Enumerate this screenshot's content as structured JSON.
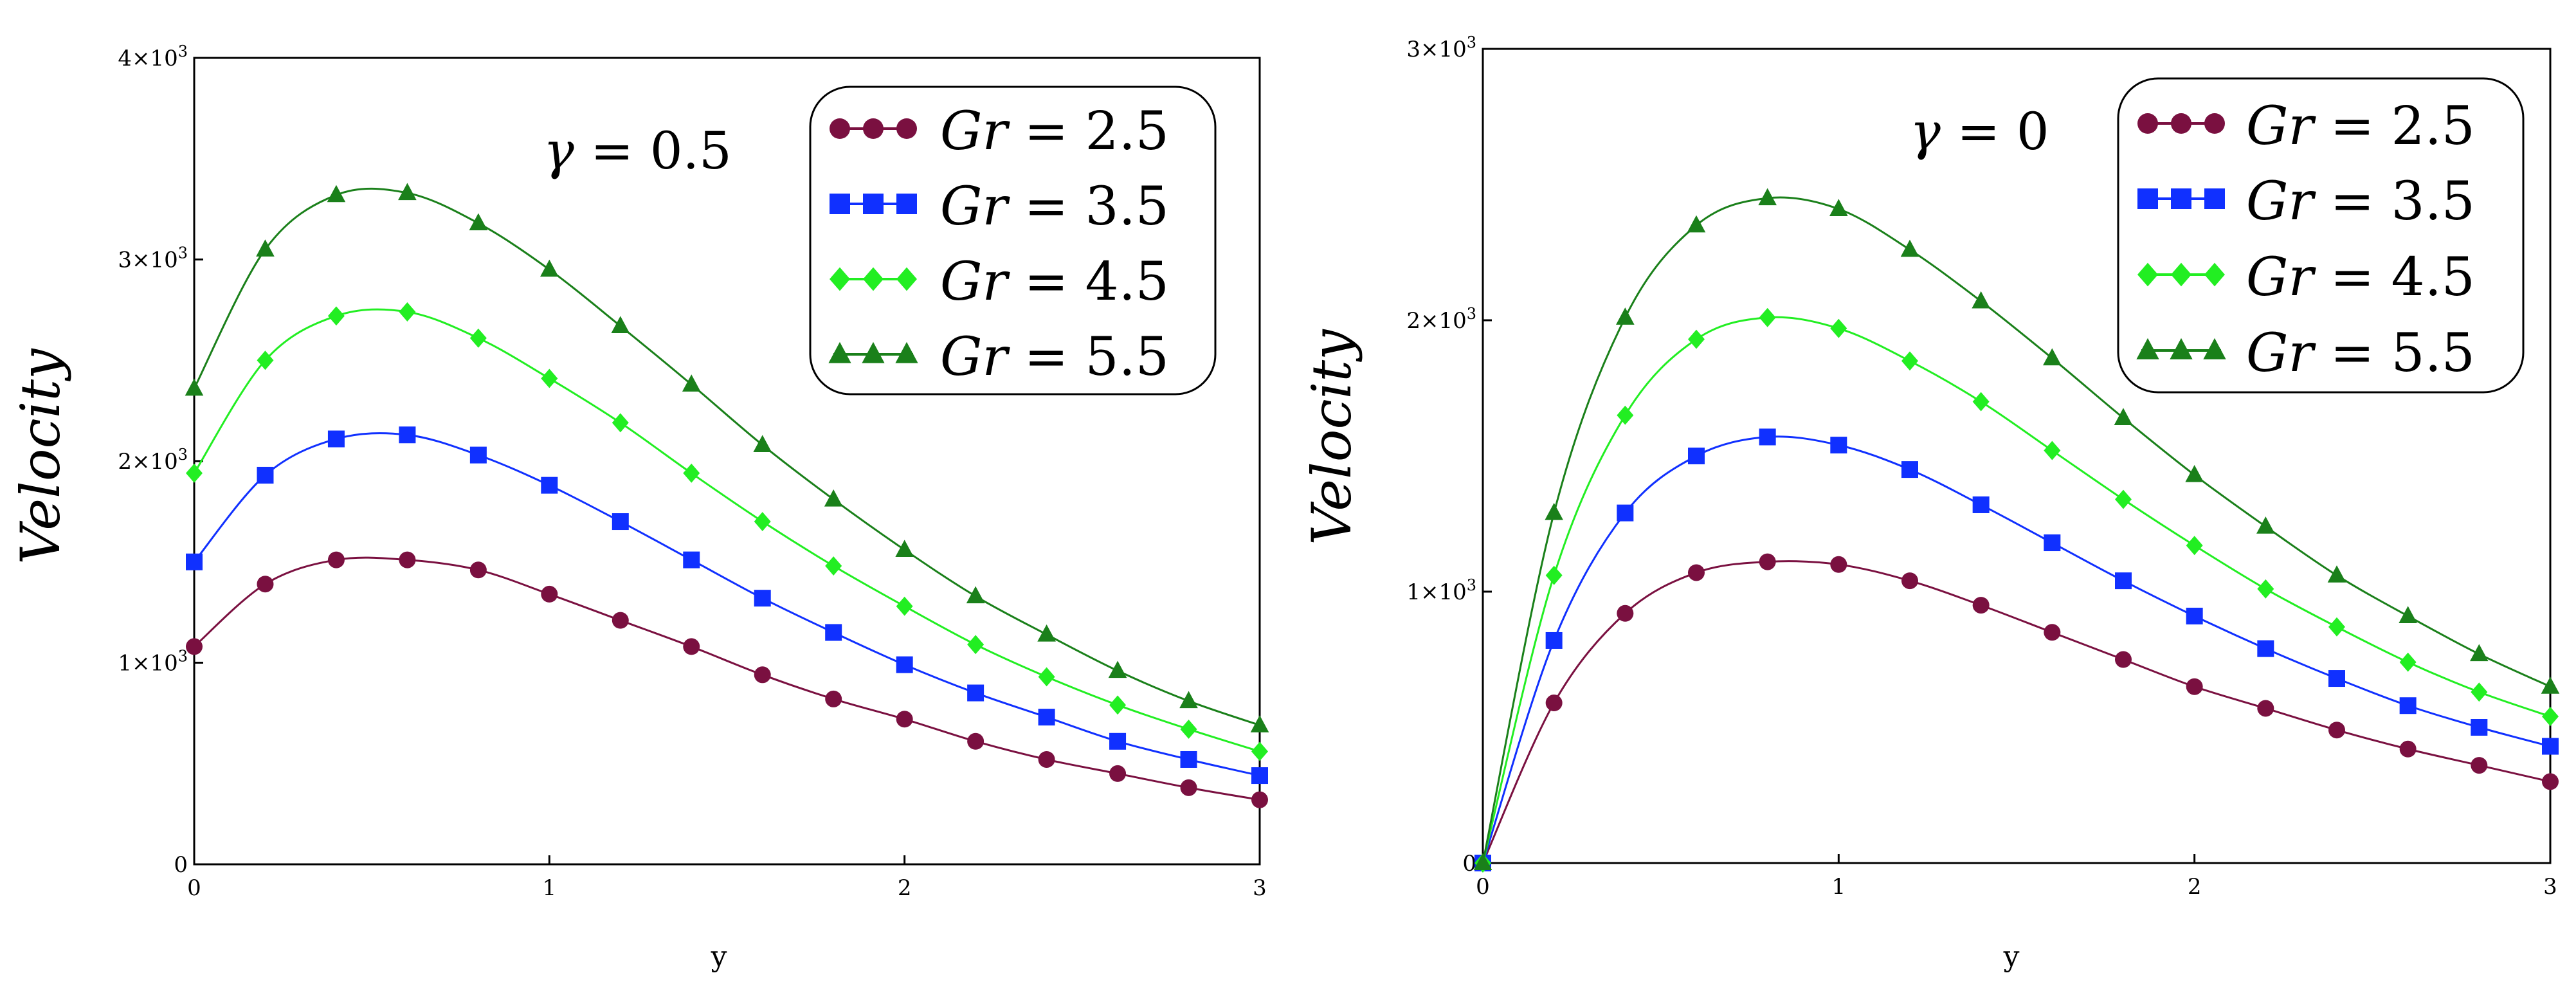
{
  "chart_data": [
    {
      "type": "line",
      "annotation": {
        "symbol": "γ",
        "text": " = 0.5"
      },
      "xlabel": "y",
      "ylabel": "Velocity",
      "xlim": [
        0,
        3
      ],
      "ylim": [
        0,
        4000
      ],
      "x_ticks": [
        "0",
        "1",
        "2",
        "3"
      ],
      "y_ticks": [
        {
          "value": 0,
          "label": "0"
        },
        {
          "value": 1000,
          "mant": "1×10",
          "exp": "3"
        },
        {
          "value": 2000,
          "mant": "2×10",
          "exp": "3"
        },
        {
          "value": 3000,
          "mant": "3×10",
          "exp": "3"
        },
        {
          "value": 4000,
          "mant": "4×10",
          "exp": "3"
        }
      ],
      "legend_position": "top-right",
      "x": [
        0,
        0.2,
        0.4,
        0.6,
        0.8,
        1.0,
        1.2,
        1.4,
        1.6,
        1.8,
        2.0,
        2.2,
        2.4,
        2.6,
        2.8,
        3.0
      ],
      "series": [
        {
          "name": "Gr = 2.5",
          "name_var": "Gr",
          "name_rest": " = 2.5",
          "color": "#7a1040",
          "marker": "circle",
          "values": [
            1080,
            1390,
            1510,
            1510,
            1460,
            1340,
            1210,
            1080,
            940,
            820,
            720,
            610,
            520,
            450,
            380,
            320
          ]
        },
        {
          "name": "Gr = 3.5",
          "name_var": "Gr",
          "name_rest": " = 3.5",
          "color": "#1030ff",
          "marker": "square",
          "values": [
            1500,
            1930,
            2110,
            2130,
            2030,
            1880,
            1700,
            1510,
            1320,
            1150,
            990,
            850,
            730,
            610,
            520,
            440
          ]
        },
        {
          "name": "Gr = 4.5",
          "name_var": "Gr",
          "name_rest": " = 4.5",
          "color": "#22ee22",
          "marker": "diamond",
          "values": [
            1940,
            2500,
            2720,
            2740,
            2610,
            2410,
            2190,
            1940,
            1700,
            1480,
            1280,
            1090,
            930,
            790,
            670,
            560
          ]
        },
        {
          "name": "Gr = 5.5",
          "name_var": "Gr",
          "name_rest": " = 5.5",
          "color": "#1a801a",
          "marker": "triangle",
          "values": [
            2360,
            3050,
            3320,
            3330,
            3180,
            2950,
            2670,
            2380,
            2080,
            1810,
            1560,
            1330,
            1140,
            960,
            810,
            690
          ]
        }
      ]
    },
    {
      "type": "line",
      "annotation": {
        "symbol": "γ",
        "text": " = 0"
      },
      "xlabel": "y",
      "ylabel": "Velocity",
      "xlim": [
        0,
        3
      ],
      "ylim": [
        0,
        3000
      ],
      "x_ticks": [
        "0",
        "1",
        "2",
        "3"
      ],
      "y_ticks": [
        {
          "value": 0,
          "label": "0"
        },
        {
          "value": 1000,
          "mant": "1×10",
          "exp": "3"
        },
        {
          "value": 2000,
          "mant": "2×10",
          "exp": "3"
        },
        {
          "value": 3000,
          "mant": "3×10",
          "exp": "3"
        }
      ],
      "legend_position": "top-right",
      "x": [
        0,
        0.2,
        0.4,
        0.6,
        0.8,
        1.0,
        1.2,
        1.4,
        1.6,
        1.8,
        2.0,
        2.2,
        2.4,
        2.6,
        2.8,
        3.0
      ],
      "series": [
        {
          "name": "Gr = 2.5",
          "name_var": "Gr",
          "name_rest": " = 2.5",
          "color": "#7a1040",
          "marker": "circle",
          "values": [
            0,
            590,
            920,
            1070,
            1110,
            1100,
            1040,
            950,
            850,
            750,
            650,
            570,
            490,
            420,
            360,
            300
          ]
        },
        {
          "name": "Gr = 3.5",
          "name_var": "Gr",
          "name_rest": " = 3.5",
          "color": "#1030ff",
          "marker": "square",
          "values": [
            0,
            820,
            1290,
            1500,
            1570,
            1540,
            1450,
            1320,
            1180,
            1040,
            910,
            790,
            680,
            580,
            500,
            430
          ]
        },
        {
          "name": "Gr = 4.5",
          "name_var": "Gr",
          "name_rest": " = 4.5",
          "color": "#22ee22",
          "marker": "diamond",
          "values": [
            0,
            1060,
            1650,
            1930,
            2010,
            1970,
            1850,
            1700,
            1520,
            1340,
            1170,
            1010,
            870,
            740,
            630,
            540
          ]
        },
        {
          "name": "Gr = 5.5",
          "name_var": "Gr",
          "name_rest": " = 5.5",
          "color": "#1a801a",
          "marker": "triangle",
          "values": [
            0,
            1290,
            2010,
            2350,
            2450,
            2410,
            2260,
            2070,
            1860,
            1640,
            1430,
            1240,
            1060,
            910,
            770,
            650
          ]
        }
      ]
    }
  ]
}
